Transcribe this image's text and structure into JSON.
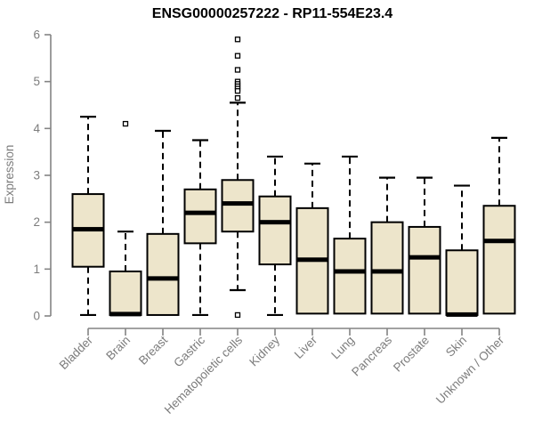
{
  "chart_data": {
    "type": "boxplot",
    "title": "ENSG00000257222 - RP11-554E23.4",
    "ylabel": "Expression",
    "xlabel": "",
    "ylim": [
      0,
      6
    ],
    "yticks": [
      0,
      1,
      2,
      3,
      4,
      5,
      6
    ],
    "grid": false,
    "legend": "none",
    "categories": [
      "Bladder",
      "Brain",
      "Breast",
      "Gastric",
      "Hematopoietic cells",
      "Kidney",
      "Liver",
      "Lung",
      "Pancreas",
      "Prostate",
      "Skin",
      "Unknown / Other"
    ],
    "boxes": [
      {
        "category": "Bladder",
        "whisker_low": 0.02,
        "q1": 1.05,
        "median": 1.85,
        "q3": 2.6,
        "whisker_high": 4.25,
        "outliers": []
      },
      {
        "category": "Brain",
        "whisker_low": 0.02,
        "q1": 0.02,
        "median": 0.04,
        "q3": 0.95,
        "whisker_high": 1.8,
        "outliers": [
          4.1
        ]
      },
      {
        "category": "Breast",
        "whisker_low": 0.02,
        "q1": 0.02,
        "median": 0.8,
        "q3": 1.75,
        "whisker_high": 3.95,
        "outliers": []
      },
      {
        "category": "Gastric",
        "whisker_low": 0.02,
        "q1": 1.55,
        "median": 2.2,
        "q3": 2.7,
        "whisker_high": 3.75,
        "outliers": []
      },
      {
        "category": "Hematopoietic cells",
        "whisker_low": 0.55,
        "q1": 1.8,
        "median": 2.4,
        "q3": 2.9,
        "whisker_high": 4.55,
        "outliers": [
          5.9,
          5.55,
          5.25,
          5.0,
          4.95,
          4.9,
          4.85,
          4.8,
          4.65,
          0.02
        ]
      },
      {
        "category": "Kidney",
        "whisker_low": 0.02,
        "q1": 1.1,
        "median": 2.0,
        "q3": 2.55,
        "whisker_high": 3.4,
        "outliers": []
      },
      {
        "category": "Liver",
        "whisker_low": 0.05,
        "q1": 0.05,
        "median": 1.2,
        "q3": 2.3,
        "whisker_high": 3.25,
        "outliers": []
      },
      {
        "category": "Lung",
        "whisker_low": 0.05,
        "q1": 0.05,
        "median": 0.95,
        "q3": 1.65,
        "whisker_high": 3.4,
        "outliers": []
      },
      {
        "category": "Pancreas",
        "whisker_low": 0.05,
        "q1": 0.05,
        "median": 0.95,
        "q3": 2.0,
        "whisker_high": 2.95,
        "outliers": []
      },
      {
        "category": "Prostate",
        "whisker_low": 0.05,
        "q1": 0.05,
        "median": 1.25,
        "q3": 1.9,
        "whisker_high": 2.95,
        "outliers": []
      },
      {
        "category": "Skin",
        "whisker_low": 0.02,
        "q1": 0.02,
        "median": 0.03,
        "q3": 1.4,
        "whisker_high": 2.78,
        "outliers": []
      },
      {
        "category": "Unknown / Other",
        "whisker_low": 0.05,
        "q1": 0.05,
        "median": 1.6,
        "q3": 2.35,
        "whisker_high": 3.8,
        "outliers": []
      }
    ],
    "colors": {
      "box_fill": "#EDE5CB",
      "box_border": "#000000",
      "median": "#000000",
      "whisker": "#000000",
      "outlier_stroke": "#000000",
      "outlier_fill": "#FFFFFF",
      "axis_line": "#848484",
      "axis_text": "#7C7C7C",
      "title": "#000000",
      "background": "#FFFFFF"
    }
  }
}
